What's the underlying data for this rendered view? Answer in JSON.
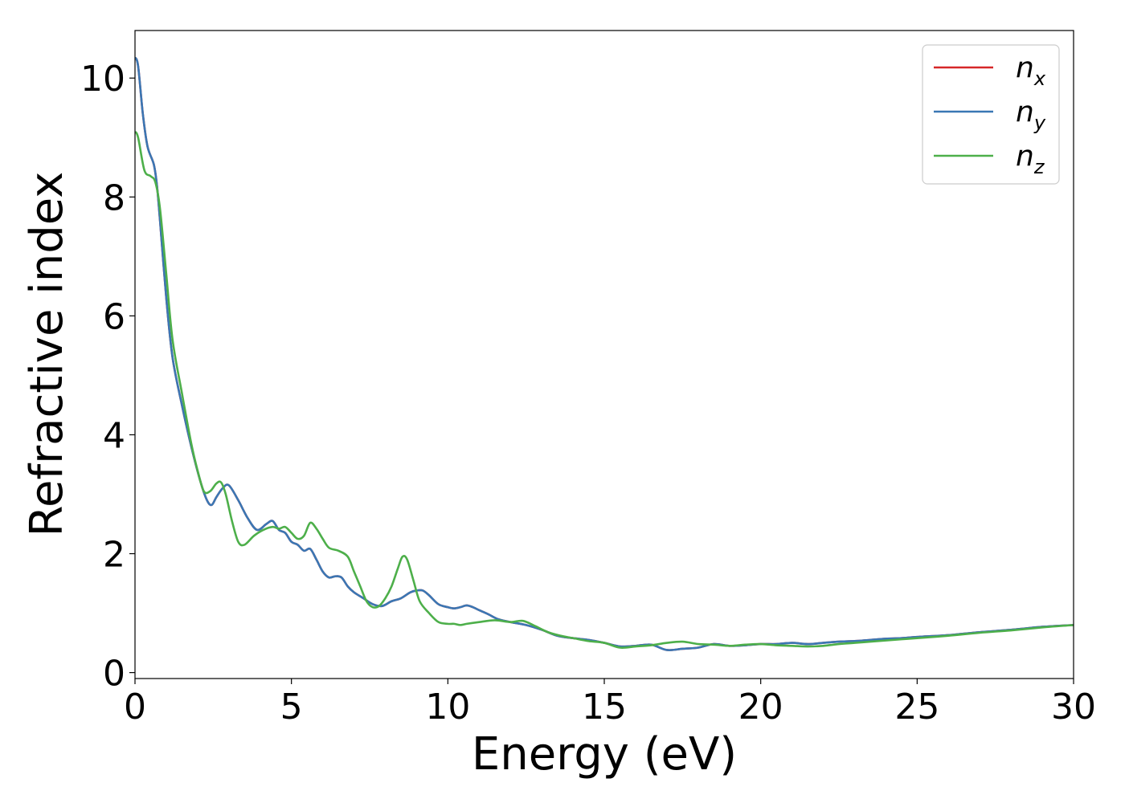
{
  "chart_data": {
    "type": "line",
    "xlabel": "Energy (eV)",
    "ylabel": "Refractive index",
    "xlim": [
      0,
      30
    ],
    "ylim": [
      -0.1,
      10.8
    ],
    "xticks": [
      0,
      5,
      10,
      15,
      20,
      25,
      30
    ],
    "xtick_labels": [
      "0",
      "5",
      "10",
      "15",
      "20",
      "25",
      "30"
    ],
    "yticks": [
      0,
      2,
      4,
      6,
      8,
      10
    ],
    "ytick_labels": [
      "0",
      "2",
      "4",
      "6",
      "8",
      "10"
    ],
    "grid": false,
    "legend_position": "top-right",
    "series": [
      {
        "name": "n",
        "subscript": "x",
        "color": "#d62728",
        "x": [
          0,
          0.1,
          0.25,
          0.4,
          0.6,
          0.7,
          0.8,
          1.0,
          1.2,
          1.5,
          1.8,
          2.1,
          2.3,
          2.45,
          2.6,
          2.8,
          3.0,
          3.3,
          3.6,
          3.9,
          4.2,
          4.4,
          4.6,
          4.8,
          5.0,
          5.2,
          5.4,
          5.6,
          5.8,
          6.0,
          6.2,
          6.4,
          6.6,
          6.8,
          7.0,
          7.3,
          7.6,
          7.9,
          8.2,
          8.5,
          8.8,
          9.0,
          9.2,
          9.4,
          9.7,
          10.0,
          10.2,
          10.4,
          10.6,
          10.8,
          11.0,
          11.3,
          11.6,
          12.0,
          12.5,
          13.0,
          13.5,
          14.0,
          14.5,
          15.0,
          15.5,
          16.0,
          16.5,
          17.0,
          17.5,
          18.0,
          18.5,
          19.0,
          19.5,
          20.0,
          20.5,
          21.0,
          21.5,
          22.0,
          22.5,
          23.0,
          23.5,
          24.0,
          24.5,
          25.0,
          26.0,
          27.0,
          28.0,
          29.0,
          30.0
        ],
        "values": [
          10.35,
          10.2,
          9.4,
          8.85,
          8.55,
          8.2,
          7.6,
          6.3,
          5.3,
          4.5,
          3.8,
          3.2,
          2.9,
          2.82,
          2.95,
          3.1,
          3.15,
          2.9,
          2.6,
          2.4,
          2.5,
          2.55,
          2.4,
          2.35,
          2.2,
          2.15,
          2.05,
          2.08,
          1.9,
          1.7,
          1.6,
          1.62,
          1.6,
          1.45,
          1.35,
          1.25,
          1.15,
          1.12,
          1.2,
          1.25,
          1.35,
          1.38,
          1.38,
          1.3,
          1.15,
          1.1,
          1.08,
          1.1,
          1.13,
          1.1,
          1.05,
          0.98,
          0.9,
          0.85,
          0.8,
          0.72,
          0.62,
          0.58,
          0.55,
          0.5,
          0.44,
          0.45,
          0.47,
          0.38,
          0.4,
          0.42,
          0.48,
          0.45,
          0.46,
          0.48,
          0.48,
          0.5,
          0.48,
          0.5,
          0.52,
          0.53,
          0.55,
          0.57,
          0.58,
          0.6,
          0.63,
          0.68,
          0.72,
          0.77,
          0.8
        ]
      },
      {
        "name": "n",
        "subscript": "y",
        "color": "#3a77b4",
        "x": [
          0,
          0.1,
          0.25,
          0.4,
          0.6,
          0.7,
          0.8,
          1.0,
          1.2,
          1.5,
          1.8,
          2.1,
          2.3,
          2.45,
          2.6,
          2.8,
          3.0,
          3.3,
          3.6,
          3.9,
          4.2,
          4.4,
          4.6,
          4.8,
          5.0,
          5.2,
          5.4,
          5.6,
          5.8,
          6.0,
          6.2,
          6.4,
          6.6,
          6.8,
          7.0,
          7.3,
          7.6,
          7.9,
          8.2,
          8.5,
          8.8,
          9.0,
          9.2,
          9.4,
          9.7,
          10.0,
          10.2,
          10.4,
          10.6,
          10.8,
          11.0,
          11.3,
          11.6,
          12.0,
          12.5,
          13.0,
          13.5,
          14.0,
          14.5,
          15.0,
          15.5,
          16.0,
          16.5,
          17.0,
          17.5,
          18.0,
          18.5,
          19.0,
          19.5,
          20.0,
          20.5,
          21.0,
          21.5,
          22.0,
          22.5,
          23.0,
          23.5,
          24.0,
          24.5,
          25.0,
          26.0,
          27.0,
          28.0,
          29.0,
          30.0
        ],
        "values": [
          10.35,
          10.2,
          9.4,
          8.85,
          8.55,
          8.2,
          7.6,
          6.3,
          5.3,
          4.5,
          3.8,
          3.2,
          2.9,
          2.82,
          2.95,
          3.1,
          3.15,
          2.9,
          2.6,
          2.4,
          2.5,
          2.55,
          2.4,
          2.35,
          2.2,
          2.15,
          2.05,
          2.08,
          1.9,
          1.7,
          1.6,
          1.62,
          1.6,
          1.45,
          1.35,
          1.25,
          1.15,
          1.12,
          1.2,
          1.25,
          1.35,
          1.38,
          1.38,
          1.3,
          1.15,
          1.1,
          1.08,
          1.1,
          1.13,
          1.1,
          1.05,
          0.98,
          0.9,
          0.85,
          0.8,
          0.72,
          0.62,
          0.58,
          0.55,
          0.5,
          0.44,
          0.45,
          0.47,
          0.38,
          0.4,
          0.42,
          0.48,
          0.45,
          0.46,
          0.48,
          0.48,
          0.5,
          0.48,
          0.5,
          0.52,
          0.53,
          0.55,
          0.57,
          0.58,
          0.6,
          0.63,
          0.68,
          0.72,
          0.77,
          0.8
        ]
      },
      {
        "name": "n",
        "subscript": "z",
        "color": "#4daf4a",
        "x": [
          0,
          0.1,
          0.3,
          0.5,
          0.65,
          0.8,
          1.0,
          1.2,
          1.5,
          1.8,
          2.0,
          2.2,
          2.4,
          2.6,
          2.75,
          2.9,
          3.1,
          3.3,
          3.5,
          3.8,
          4.1,
          4.4,
          4.6,
          4.8,
          5.0,
          5.2,
          5.4,
          5.6,
          5.8,
          6.0,
          6.2,
          6.5,
          6.8,
          7.0,
          7.2,
          7.4,
          7.6,
          7.8,
          8.0,
          8.2,
          8.4,
          8.55,
          8.7,
          8.9,
          9.1,
          9.4,
          9.7,
          10.0,
          10.2,
          10.4,
          10.6,
          11.0,
          11.5,
          12.0,
          12.4,
          12.8,
          13.2,
          13.6,
          14.0,
          14.5,
          15.0,
          15.5,
          16.0,
          16.5,
          17.0,
          17.5,
          18.0,
          18.5,
          19.0,
          19.5,
          20.0,
          20.5,
          21.0,
          21.5,
          22.0,
          22.5,
          23.0,
          23.5,
          24.0,
          24.5,
          25.0,
          26.0,
          27.0,
          28.0,
          29.0,
          30.0
        ],
        "values": [
          9.1,
          9.0,
          8.45,
          8.35,
          8.25,
          7.8,
          6.7,
          5.6,
          4.7,
          3.85,
          3.4,
          3.05,
          3.05,
          3.18,
          3.2,
          3.0,
          2.55,
          2.2,
          2.15,
          2.3,
          2.4,
          2.45,
          2.42,
          2.45,
          2.35,
          2.25,
          2.3,
          2.52,
          2.42,
          2.25,
          2.1,
          2.05,
          1.95,
          1.7,
          1.45,
          1.2,
          1.1,
          1.12,
          1.25,
          1.45,
          1.75,
          1.95,
          1.9,
          1.55,
          1.2,
          1.0,
          0.85,
          0.82,
          0.82,
          0.8,
          0.82,
          0.85,
          0.88,
          0.85,
          0.87,
          0.78,
          0.68,
          0.62,
          0.58,
          0.53,
          0.5,
          0.42,
          0.44,
          0.46,
          0.5,
          0.52,
          0.48,
          0.47,
          0.45,
          0.47,
          0.48,
          0.46,
          0.45,
          0.44,
          0.45,
          0.48,
          0.5,
          0.52,
          0.54,
          0.56,
          0.58,
          0.62,
          0.67,
          0.71,
          0.76,
          0.8
        ]
      }
    ]
  }
}
